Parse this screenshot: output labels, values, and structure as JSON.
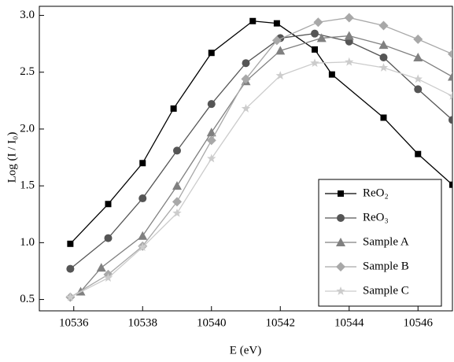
{
  "chart_data": {
    "type": "line",
    "x_label": "E (eV)",
    "y_label": "Log (I / I₀)",
    "xlim": [
      10535,
      10547
    ],
    "ylim": [
      0.4,
      3.08
    ],
    "xticks": [
      10536,
      10538,
      10540,
      10542,
      10544,
      10546
    ],
    "yticks": [
      0.5,
      {
        "value": 1.0,
        "label": "1.0"
      },
      1.5,
      {
        "value": 2.0,
        "label": "2.0"
      },
      2.5,
      {
        "value": 3.0,
        "label": "3.0"
      }
    ],
    "legend": "lower right",
    "series": [
      {
        "name": "ReO₂",
        "color": "#000000",
        "marker": "square",
        "x": [
          10535.9,
          10537,
          10538,
          10538.9,
          10540,
          10541.2,
          10541.9,
          10543,
          10543.5,
          10545,
          10546,
          10547
        ],
        "values": [
          0.99,
          1.34,
          1.7,
          2.18,
          2.67,
          2.95,
          2.93,
          2.7,
          2.48,
          2.1,
          1.78,
          1.51
        ]
      },
      {
        "name": "ReO₃",
        "color": "#555555",
        "marker": "circle",
        "x": [
          10535.9,
          10537,
          10538,
          10539,
          10540,
          10541,
          10542,
          10543,
          10544,
          10545,
          10546,
          10547
        ],
        "values": [
          0.77,
          1.04,
          1.39,
          1.81,
          2.22,
          2.58,
          2.8,
          2.84,
          2.77,
          2.63,
          2.35,
          2.08
        ]
      },
      {
        "name": "Sample A",
        "color": "#808080",
        "marker": "triangle",
        "x": [
          10536.2,
          10536.8,
          10538,
          10539,
          10540,
          10541,
          10542,
          10543.2,
          10544,
          10545,
          10546,
          10547
        ],
        "values": [
          0.57,
          0.78,
          1.06,
          1.5,
          1.97,
          2.42,
          2.69,
          2.8,
          2.82,
          2.74,
          2.63,
          2.46
        ]
      },
      {
        "name": "Sample B",
        "color": "#a8a8a8",
        "marker": "diamond",
        "x": [
          10535.9,
          10537,
          10538,
          10539,
          10540,
          10541,
          10541.9,
          10543.1,
          10544,
          10545,
          10546,
          10547
        ],
        "values": [
          0.52,
          0.72,
          0.97,
          1.36,
          1.9,
          2.44,
          2.78,
          2.94,
          2.98,
          2.91,
          2.79,
          2.66
        ]
      },
      {
        "name": "Sample C",
        "color": "#cccccc",
        "marker": "star",
        "x": [
          10535.9,
          10537,
          10538,
          10539,
          10540,
          10541,
          10542,
          10543,
          10544,
          10545,
          10546,
          10547
        ],
        "values": [
          0.52,
          0.69,
          0.96,
          1.26,
          1.74,
          2.18,
          2.47,
          2.58,
          2.59,
          2.54,
          2.44,
          2.29
        ]
      }
    ]
  }
}
